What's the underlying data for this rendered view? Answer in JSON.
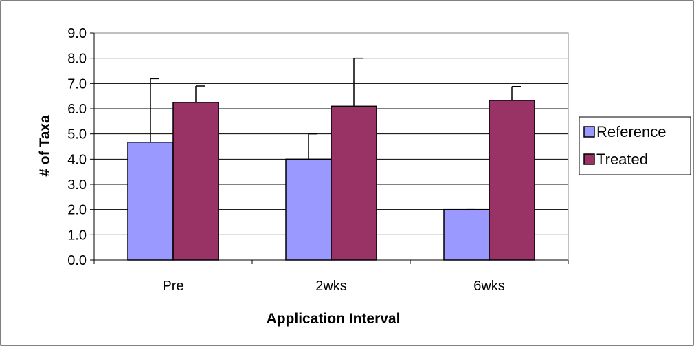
{
  "chart_data": {
    "type": "bar",
    "xlabel": "Application Interval",
    "ylabel": "# of Taxa",
    "categories": [
      "Pre",
      "2wks",
      "6wks"
    ],
    "ylim": [
      0,
      9
    ],
    "yticks": [
      "0.0",
      "1.0",
      "2.0",
      "3.0",
      "4.0",
      "5.0",
      "6.0",
      "7.0",
      "8.0",
      "9.0"
    ],
    "grid": "horizontal",
    "legend_position": "right",
    "series": [
      {
        "name": "Reference",
        "color": "#9999ff",
        "values": [
          4.67,
          4.0,
          2.0
        ],
        "error": [
          2.52,
          1.0,
          0.0
        ]
      },
      {
        "name": "Treated",
        "color": "#993366",
        "values": [
          6.25,
          6.1,
          6.33
        ],
        "error": [
          0.65,
          1.9,
          0.55
        ]
      }
    ]
  }
}
